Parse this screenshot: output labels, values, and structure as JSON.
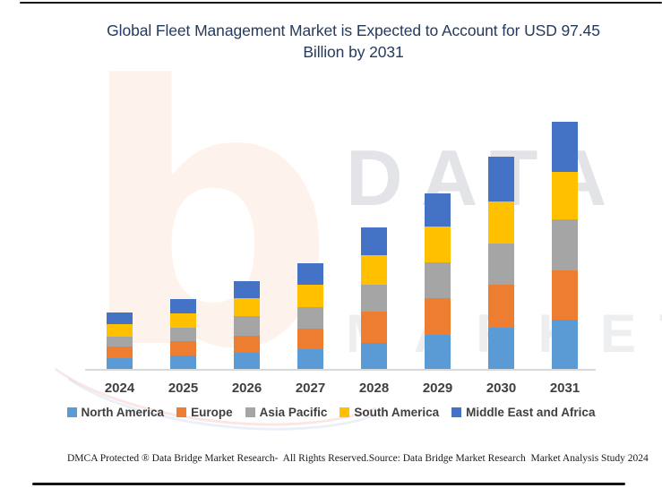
{
  "title": {
    "line1": "Global Fleet Management Market is Expected to Account for USD 97.45",
    "line2": "Billion by 2031"
  },
  "footer": {
    "left": "DMCA Protected ® Data Bridge Market Research-  All Rights Reserved.",
    "right": "Source: Data Bridge Market Research  Market Analysis Study 2024"
  },
  "watermark": {
    "logo_letter": "b",
    "text_line1": "DATA B",
    "text_line2": "MARKET R"
  },
  "colors": {
    "title_text": "#243A5E",
    "axis_line": "#D9D9D9",
    "tick_label": "#3F3F3F",
    "north_america": "#5B9BD5",
    "europe": "#ED7D31",
    "asia_pacific": "#A5A5A5",
    "south_america": "#FFC000",
    "middle_east_and_africa": "#4472C4"
  },
  "chart_data": {
    "type": "bar",
    "stacked": true,
    "title": "Global Fleet Management Market is Expected to Account for USD 97.45 Billion by 2031",
    "unit": "USD Billion",
    "categories": [
      "2024",
      "2025",
      "2026",
      "2027",
      "2028",
      "2029",
      "2030",
      "2031"
    ],
    "series": [
      {
        "name": "North America",
        "color": "#5B9BD5",
        "values": [
          4.2,
          5.3,
          6.4,
          7.8,
          10.2,
          13.4,
          16.2,
          19.4
        ]
      },
      {
        "name": "Europe",
        "color": "#ED7D31",
        "values": [
          4.6,
          5.6,
          6.7,
          8.1,
          12.4,
          14.5,
          16.9,
          19.4
        ]
      },
      {
        "name": "Asia Pacific",
        "color": "#A5A5A5",
        "values": [
          3.9,
          5.3,
          7.8,
          8.5,
          10.6,
          14.1,
          16.2,
          20.1
        ]
      },
      {
        "name": "South America",
        "color": "#FFC000",
        "values": [
          4.9,
          5.6,
          7.1,
          8.8,
          11.7,
          14.1,
          16.6,
          18.7
        ]
      },
      {
        "name": "Middle East and Africa",
        "color": "#4472C4",
        "values": [
          4.6,
          5.6,
          6.7,
          8.5,
          10.9,
          13.1,
          17.7,
          19.8
        ]
      }
    ],
    "totals_estimated": [
      22.2,
      27.4,
      34.7,
      41.7,
      55.8,
      69.2,
      83.6,
      97.45
    ],
    "highlight_value": "USD 97.45 Billion by 2031",
    "ylim": [
      0,
      100
    ],
    "y_axis_visible": false,
    "grid": false,
    "legend_position": "bottom"
  }
}
